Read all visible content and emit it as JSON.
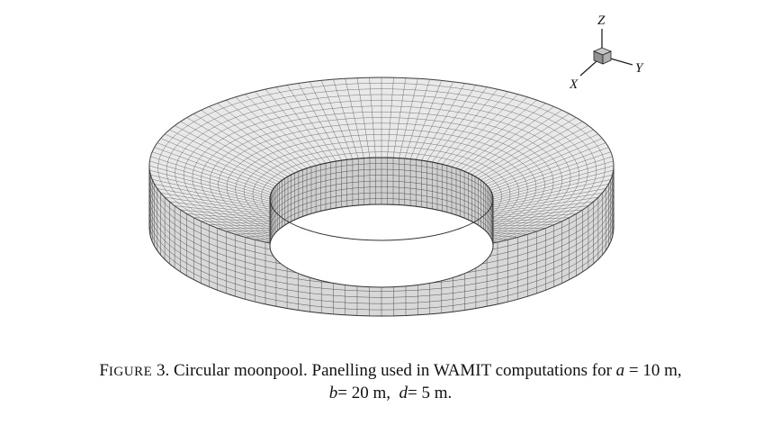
{
  "figure": {
    "axes": {
      "z": "Z",
      "y": "Y",
      "x": "X"
    }
  },
  "caption": {
    "label_first": "F",
    "label_rest": "IGURE",
    "number": "3.",
    "line1_text": "Circular moonpool. Panelling used in WAMIT computations for",
    "var_a": "a",
    "val_a": "= 10 m,",
    "var_b": "b",
    "val_b": "= 20 m,",
    "var_d": "d",
    "val_d": "= 5 m."
  }
}
